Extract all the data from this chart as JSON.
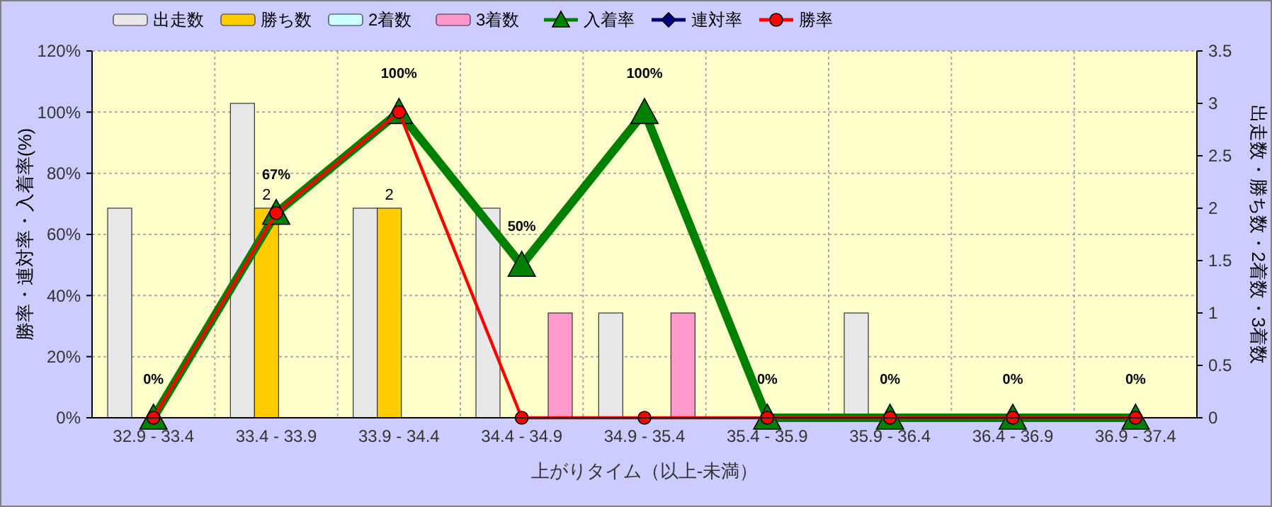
{
  "chart_data": {
    "type": "bar",
    "xlabel": "上がりタイム（以上-未満）",
    "ylabel": "勝率・連対率・入着率(%)",
    "y2label": "出走数・勝ち数・2着数・3着数",
    "categories": [
      "32.9 - 33.4",
      "33.4 - 33.9",
      "33.9 - 34.4",
      "34.4 - 34.9",
      "34.9 - 35.4",
      "35.4 - 35.9",
      "35.9 - 36.4",
      "36.4 - 36.9",
      "36.9 - 37.4"
    ],
    "series": [
      {
        "name": "出走数",
        "axis": "y2",
        "color": "#e8e8e8",
        "values": [
          2,
          3,
          2,
          2,
          1,
          0,
          1,
          0,
          0
        ]
      },
      {
        "name": "勝ち数",
        "axis": "y2",
        "color": "#ffcc00",
        "values": [
          0,
          2,
          2,
          0,
          0,
          0,
          0,
          0,
          0
        ],
        "value_labels": [
          null,
          "2",
          "2",
          null,
          null,
          null,
          null,
          null,
          null
        ]
      },
      {
        "name": "2着数",
        "axis": "y2",
        "color": "#ccffff",
        "values": [
          0,
          0,
          0,
          0,
          0,
          0,
          0,
          0,
          0
        ]
      },
      {
        "name": "3着数",
        "axis": "y2",
        "color": "#ff99cc",
        "values": [
          0,
          0,
          0,
          1,
          1,
          0,
          0,
          0,
          0
        ]
      },
      {
        "name": "入着率",
        "type": "line",
        "axis": "y",
        "color": "#008000",
        "marker": "triangle",
        "values": [
          0,
          67,
          100,
          50,
          100,
          0,
          0,
          0,
          0
        ],
        "value_labels": [
          "0%",
          "67%",
          "100%",
          "50%",
          "100%",
          "0%",
          "0%",
          "0%",
          "0%"
        ]
      },
      {
        "name": "連対率",
        "type": "line",
        "axis": "y",
        "color": "#000080",
        "marker": "diamond",
        "values": [
          null,
          null,
          null,
          null,
          null,
          null,
          null,
          null,
          null
        ]
      },
      {
        "name": "勝率",
        "type": "line",
        "axis": "y",
        "color": "#ff0000",
        "marker": "circle",
        "values": [
          0,
          67,
          100,
          0,
          0,
          0,
          0,
          0,
          0
        ]
      }
    ],
    "ylim": [
      0,
      120
    ],
    "yticks": [
      {
        "value": 0,
        "label": "0%"
      },
      {
        "value": 20,
        "label": "20%"
      },
      {
        "value": 40,
        "label": "40%"
      },
      {
        "value": 60,
        "label": "60%"
      },
      {
        "value": 80,
        "label": "80%"
      },
      {
        "value": 100,
        "label": "100%"
      },
      {
        "value": 120,
        "label": "120%"
      }
    ],
    "y2lim": [
      0,
      3.5
    ],
    "y2ticks": [
      0,
      0.5,
      1,
      1.5,
      2,
      2.5,
      3,
      3.5
    ],
    "grid": true,
    "legend": "top"
  }
}
